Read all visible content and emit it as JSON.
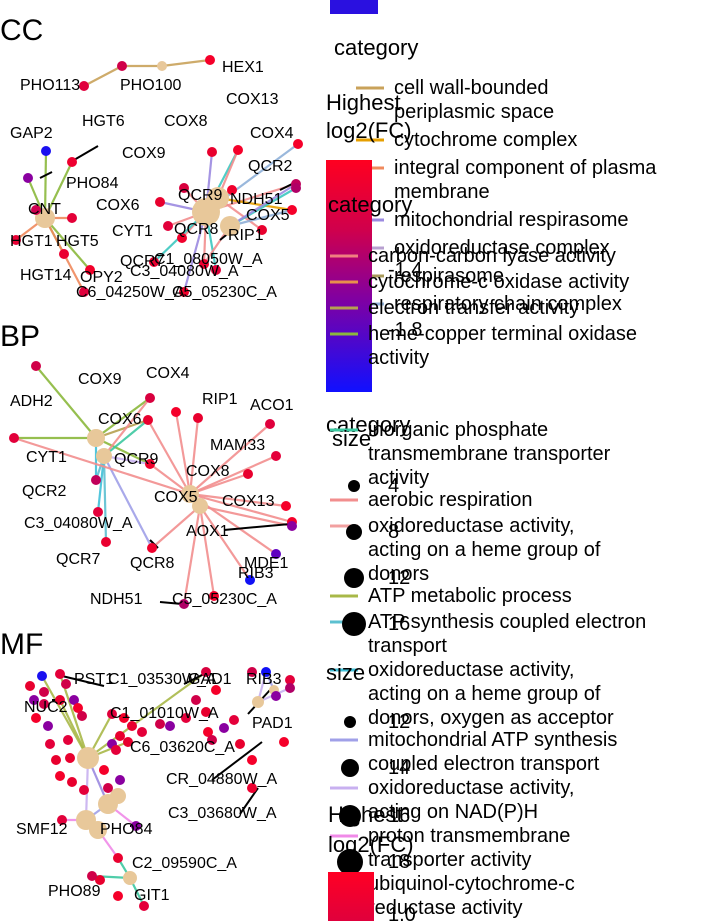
{
  "panels": [
    {
      "id": "CC",
      "title": "CC",
      "nodes": [
        {
          "id": "HEX1",
          "label": "HEX1",
          "kind": "gene",
          "color": "#f5002a"
        },
        {
          "id": "PHO100",
          "label": "PHO100",
          "kind": "gene",
          "color": "#d00048"
        },
        {
          "id": "PHO113",
          "label": "PHO113",
          "kind": "gene",
          "color": "#e0003c"
        },
        {
          "id": "HGT6",
          "label": "HGT6",
          "kind": "gene",
          "color": "#ee0030"
        },
        {
          "id": "GAP2",
          "label": "GAP2",
          "kind": "gene",
          "color": "#1a10f0"
        },
        {
          "id": "PHO84",
          "label": "PHO84",
          "kind": "gene",
          "color": "#8a00a0"
        },
        {
          "id": "CNT",
          "label": "CNT",
          "kind": "gene",
          "color": "#d00050"
        },
        {
          "id": "HGT5",
          "label": "HGT5",
          "kind": "gene",
          "color": "#e40038"
        },
        {
          "id": "HGT1",
          "label": "HGT1",
          "kind": "gene",
          "color": "#e80034"
        },
        {
          "id": "HGT14",
          "label": "HGT14",
          "kind": "gene",
          "color": "#ea0030"
        },
        {
          "id": "OPY2",
          "label": "OPY2",
          "kind": "gene",
          "color": "#f2002a"
        },
        {
          "id": "C6_04250",
          "label": "C6_04250W_A",
          "kind": "gene",
          "color": "#e0003c"
        },
        {
          "id": "C5_05230",
          "label": "C5_05230C_A",
          "kind": "gene",
          "color": "#f0002c"
        },
        {
          "id": "COX13",
          "label": "COX13",
          "kind": "gene",
          "color": "#f5002a"
        },
        {
          "id": "COX8",
          "label": "COX8",
          "kind": "gene",
          "color": "#e8002e"
        },
        {
          "id": "COX4",
          "label": "COX4",
          "kind": "gene",
          "color": "#f5002a"
        },
        {
          "id": "COX9",
          "label": "COX9",
          "kind": "gene",
          "color": "#d8003e"
        },
        {
          "id": "QCR2",
          "label": "QCR2",
          "kind": "gene",
          "color": "#c0005a"
        },
        {
          "id": "QCR9",
          "label": "QCR9",
          "kind": "gene",
          "color": "#f0002c"
        },
        {
          "id": "NDH51",
          "label": "NDH51",
          "kind": "gene",
          "color": "#b00066"
        },
        {
          "id": "COX6",
          "label": "COX6",
          "kind": "gene",
          "color": "#e8002e"
        },
        {
          "id": "COX5",
          "label": "COX5",
          "kind": "gene",
          "color": "#f5002a"
        },
        {
          "id": "CYT1",
          "label": "CYT1",
          "kind": "gene",
          "color": "#e2003a"
        },
        {
          "id": "QCR8",
          "label": "QCR8",
          "kind": "gene",
          "color": "#f0002c"
        },
        {
          "id": "RIP1",
          "label": "RIP1",
          "kind": "gene",
          "color": "#e8002e"
        },
        {
          "id": "QCR7",
          "label": "QCR7",
          "kind": "gene",
          "color": "#ea0030"
        },
        {
          "id": "C1_08050",
          "label": "C1_08050W_A",
          "kind": "gene",
          "color": "#ee0030"
        },
        {
          "id": "C3_04080",
          "label": "C3_04080W_A",
          "kind": "gene",
          "color": "#e4003a"
        }
      ]
    },
    {
      "id": "BP",
      "title": "BP",
      "nodes": [
        {
          "id": "ADH2",
          "label": "ADH2",
          "kind": "gene",
          "color": "#d00048"
        },
        {
          "id": "COX9",
          "label": "COX9",
          "kind": "gene",
          "color": "#d8003e"
        },
        {
          "id": "COX4",
          "label": "COX4",
          "kind": "gene",
          "color": "#f5002a"
        },
        {
          "id": "RIP1",
          "label": "RIP1",
          "kind": "gene",
          "color": "#e8002e"
        },
        {
          "id": "ACO1",
          "label": "ACO1",
          "kind": "gene",
          "color": "#e0003c"
        },
        {
          "id": "COX6",
          "label": "COX6",
          "kind": "gene",
          "color": "#e8002e"
        },
        {
          "id": "MAM33",
          "label": "MAM33",
          "kind": "gene",
          "color": "#e4003a"
        },
        {
          "id": "CYT1",
          "label": "CYT1",
          "kind": "gene",
          "color": "#e2003a"
        },
        {
          "id": "QCR9",
          "label": "QCR9",
          "kind": "gene",
          "color": "#f0002c"
        },
        {
          "id": "COX8",
          "label": "COX8",
          "kind": "gene",
          "color": "#e8002e"
        },
        {
          "id": "QCR2",
          "label": "QCR2",
          "kind": "gene",
          "color": "#c0005a"
        },
        {
          "id": "COX5",
          "label": "COX5",
          "kind": "gene",
          "color": "#f5002a"
        },
        {
          "id": "COX13",
          "label": "COX13",
          "kind": "gene",
          "color": "#f5002a"
        },
        {
          "id": "C3_04080",
          "label": "C3_04080W_A",
          "kind": "gene",
          "color": "#e4003a"
        },
        {
          "id": "AOX1",
          "label": "AOX1",
          "kind": "gene",
          "color": "#8a00a0"
        },
        {
          "id": "QCR7",
          "label": "QCR7",
          "kind": "gene",
          "color": "#ea0030"
        },
        {
          "id": "QCR8",
          "label": "QCR8",
          "kind": "gene",
          "color": "#f0002c"
        },
        {
          "id": "MDE1",
          "label": "MDE1",
          "kind": "gene",
          "color": "#6000c0"
        },
        {
          "id": "RIB3",
          "label": "RIB3",
          "kind": "gene",
          "color": "#1010f5"
        },
        {
          "id": "NDH51",
          "label": "NDH51",
          "kind": "gene",
          "color": "#b00066"
        },
        {
          "id": "C5_05230",
          "label": "C5_05230C_A",
          "kind": "gene",
          "color": "#f0002c"
        }
      ]
    },
    {
      "id": "MF",
      "title": "MF",
      "nodes": [
        {
          "id": "PST1",
          "label": "PST1",
          "kind": "gene",
          "color": "#1a10f0"
        },
        {
          "id": "C1_03530",
          "label": "C1_03530W_A",
          "kind": "gene",
          "color": "#e4003a"
        },
        {
          "id": "GAD1",
          "label": "GAD1",
          "kind": "gene",
          "color": "#d8003e"
        },
        {
          "id": "NUC2",
          "label": "NUC2",
          "kind": "gene",
          "color": "#e8002e"
        },
        {
          "id": "C1_01010",
          "label": "C1_01010W_A",
          "kind": "gene",
          "color": "#e0003c"
        },
        {
          "id": "RIB3",
          "label": "RIB3",
          "kind": "gene",
          "color": "#1010f5"
        },
        {
          "id": "PAD1",
          "label": "PAD1",
          "kind": "gene",
          "color": "#b00066"
        },
        {
          "id": "C6_03620",
          "label": "C6_03620C_A",
          "kind": "gene",
          "color": "#e8002e"
        },
        {
          "id": "CR_04880",
          "label": "CR_04880W_A",
          "kind": "gene",
          "color": "#f5002a"
        },
        {
          "id": "C3_03680",
          "label": "C3_03680W_A",
          "kind": "gene",
          "color": "#ee0030"
        },
        {
          "id": "SMF12",
          "label": "SMF12",
          "kind": "gene",
          "color": "#e2003a"
        },
        {
          "id": "PHO84",
          "label": "PHO84",
          "kind": "gene",
          "color": "#8a00a0"
        },
        {
          "id": "C2_09590",
          "label": "C2_09590C_A",
          "kind": "gene",
          "color": "#ea0030"
        },
        {
          "id": "PHO89",
          "label": "PHO89",
          "kind": "gene",
          "color": "#d00048"
        },
        {
          "id": "GIT1",
          "label": "GIT1",
          "kind": "gene",
          "color": "#e4003a"
        }
      ]
    }
  ],
  "legends": {
    "color_scale_1": {
      "title": "Highest\nlog2(FC)",
      "ticks": [
        "-1.4",
        "-1.8"
      ],
      "colors": [
        "#ff0020",
        "#c8005a",
        "#8400a0",
        "#3a10e0",
        "#1010ff"
      ]
    },
    "category_cc": {
      "title": "category",
      "items": [
        {
          "label": "cell wall-bounded periplasmic space",
          "color": "#c9a25a"
        },
        {
          "label": "cytochrome complex",
          "color": "#e69f00"
        },
        {
          "label": "integral component of plasma membrane",
          "color": "#f08a5d"
        },
        {
          "label": "mitochondrial respirasome",
          "color": "#9b8ae0"
        },
        {
          "label": "oxidoreductase complex",
          "color": "#b8a0d0"
        },
        {
          "label": "respirasome",
          "color": "#a89a5a"
        },
        {
          "label": "respiratory chain complex",
          "color": "#8fb0d8"
        }
      ]
    },
    "category_bp": {
      "title": "category",
      "items": [
        {
          "label": "carbon-carbon lyase activity",
          "color": "#f08080"
        },
        {
          "label": "cytochrome-c oxidase activity",
          "color": "#e8904c"
        },
        {
          "label": "electron transfer activity",
          "color": "#b5a050"
        },
        {
          "label": "heme-copper terminal oxidase activity",
          "color": "#8bb83c"
        }
      ]
    },
    "category_mf": {
      "title": "category",
      "items": [
        {
          "label": "inorganic phosphate transmembrane transporter activity",
          "color": "#3cc8a0"
        },
        {
          "label": "aerobic respiration",
          "color": "#f28e8e"
        },
        {
          "label": "oxidoreductase activity, acting on a heme group of donors",
          "color": "#f2a0a0"
        },
        {
          "label": "ATP metabolic process",
          "color": "#a8b848"
        },
        {
          "label": "ATP synthesis coupled electron transport",
          "color": "#5cc0d0"
        },
        {
          "label": "oxidoreductase activity, acting on a heme group of donors, oxygen as acceptor",
          "color": "#40c0d8"
        },
        {
          "label": "mitochondrial ATP synthesis coupled electron transport",
          "color": "#a0a0e8"
        },
        {
          "label": "oxidoreductase activity, acting on NAD(P)H",
          "color": "#c8b0f0"
        },
        {
          "label": "proton transmembrane transporter activity",
          "color": "#f08ae8"
        },
        {
          "label": "ubiquinol-cytochrome-c reductase activity",
          "color": "#f080a0"
        }
      ]
    },
    "size_1": {
      "title": "size",
      "values": [
        "4",
        "8",
        "12",
        "16"
      ]
    },
    "size_2": {
      "title": "size",
      "values": [
        "12",
        "14",
        "16",
        "18"
      ]
    },
    "color_scale_2": {
      "title": "Highest\nlog2(FC)",
      "ticks": [
        "1.0"
      ]
    }
  }
}
